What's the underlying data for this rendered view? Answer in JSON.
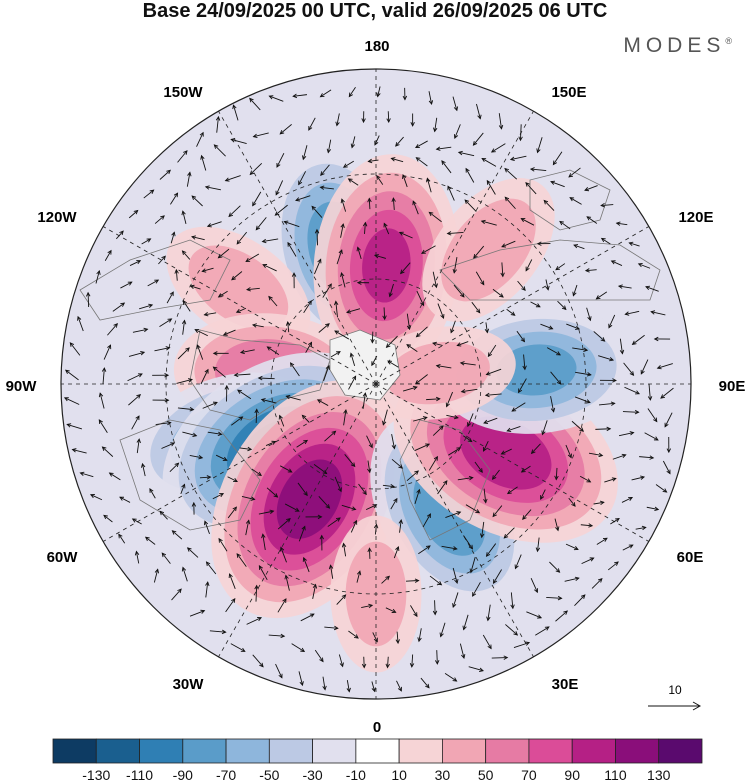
{
  "title": "Base 24/09/2025 00 UTC, valid 26/09/2025 06 UTC",
  "brand": "MODES",
  "brand_mark": "®",
  "longitude_labels": {
    "top": "180",
    "top_left": "150W",
    "top_right": "150E",
    "upper_left": "120W",
    "upper_right": "120E",
    "left": "90W",
    "right": "90E",
    "lower_left": "60W",
    "lower_right": "60E",
    "bottom_left": "30W",
    "bottom_right": "30E",
    "bottom": "0"
  },
  "vector_scale_label": "10",
  "colorbar": {
    "ticks": [
      "-130",
      "-110",
      "-90",
      "-70",
      "-50",
      "-30",
      "-10",
      "10",
      "30",
      "50",
      "70",
      "90",
      "110",
      "130"
    ],
    "colors": [
      "#0d3b63",
      "#1a5f8f",
      "#2f7fb4",
      "#5a9cc9",
      "#8eb6dc",
      "#bcc9e4",
      "#e1e0ee",
      "#ffffff",
      "#f6d4d6",
      "#f1a6b4",
      "#e67ba4",
      "#db4c98",
      "#b52085",
      "#8a0e7a",
      "#5a0a6e"
    ]
  },
  "anomaly_centers": [
    {
      "lon": -165,
      "colat_deg": 40,
      "value": -80
    },
    {
      "lon": 175,
      "colat_deg": 34,
      "value": 90
    },
    {
      "lon": 140,
      "colat_deg": 50,
      "value": 40
    },
    {
      "lon": -125,
      "colat_deg": 48,
      "value": 35
    },
    {
      "lon": -95,
      "colat_deg": 30,
      "value": 65
    },
    {
      "lon": -70,
      "colat_deg": 46,
      "value": -65
    },
    {
      "lon": -58,
      "colat_deg": 34,
      "value": -110
    },
    {
      "lon": -30,
      "colat_deg": 38,
      "value": 120
    },
    {
      "lon": 30,
      "colat_deg": 42,
      "value": -80
    },
    {
      "lon": 62,
      "colat_deg": 42,
      "value": 105
    },
    {
      "lon": 95,
      "colat_deg": 46,
      "value": -70
    },
    {
      "lon": 100,
      "colat_deg": 18,
      "value": 30
    },
    {
      "lon": 0,
      "colat_deg": 60,
      "value": 30
    }
  ]
}
